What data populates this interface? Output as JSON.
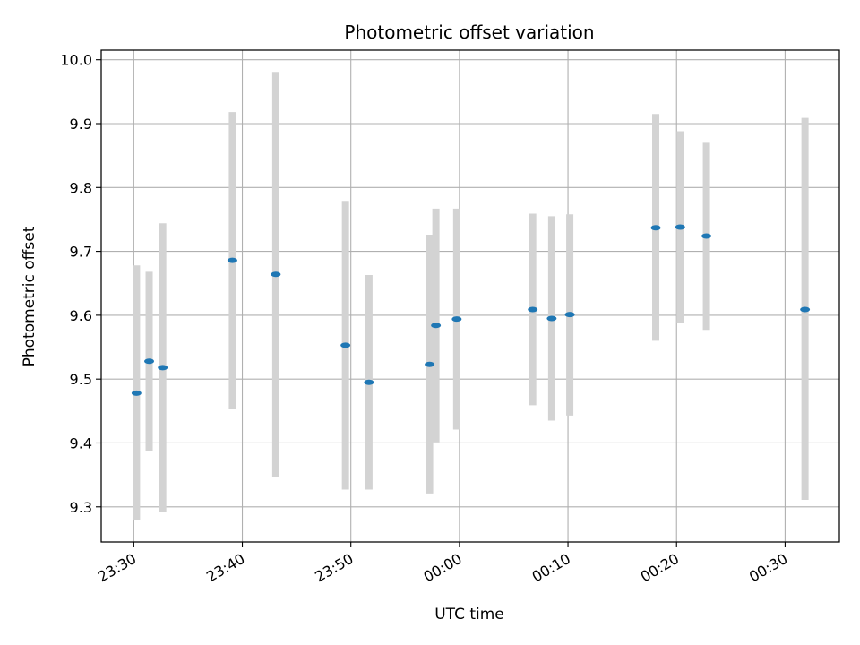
{
  "chart_data": {
    "type": "scatter",
    "title": "Photometric offset variation",
    "xlabel": "UTC time",
    "ylabel": "Photometric offset",
    "x_axis": {
      "kind": "time",
      "ticks": [
        "23:30",
        "23:40",
        "23:50",
        "00:00",
        "00:10",
        "00:20",
        "00:30"
      ],
      "range": [
        "23:27",
        "00:35"
      ]
    },
    "y_axis": {
      "ticks": [
        "9.3",
        "9.4",
        "9.5",
        "9.6",
        "9.7",
        "9.8",
        "9.9",
        "10.0"
      ],
      "range": [
        9.245,
        10.015
      ]
    },
    "grid": true,
    "marker_color": "#1f77b4",
    "errorbar_color": "#d3d3d3",
    "points": [
      {
        "time": "23:30:15",
        "y": 9.478,
        "ylow": 9.28,
        "yhigh": 9.678
      },
      {
        "time": "23:31:25",
        "y": 9.528,
        "ylow": 9.388,
        "yhigh": 9.668
      },
      {
        "time": "23:32:40",
        "y": 9.518,
        "ylow": 9.292,
        "yhigh": 9.744
      },
      {
        "time": "23:39:05",
        "y": 9.686,
        "ylow": 9.454,
        "yhigh": 9.918
      },
      {
        "time": "23:43:05",
        "y": 9.664,
        "ylow": 9.347,
        "yhigh": 9.981
      },
      {
        "time": "23:49:30",
        "y": 9.553,
        "ylow": 9.327,
        "yhigh": 9.779
      },
      {
        "time": "23:51:40",
        "y": 9.495,
        "ylow": 9.327,
        "yhigh": 9.663
      },
      {
        "time": "23:57:15",
        "y": 9.523,
        "ylow": 9.321,
        "yhigh": 9.726
      },
      {
        "time": "23:57:50",
        "y": 9.584,
        "ylow": 9.401,
        "yhigh": 9.767
      },
      {
        "time": "23:59:45",
        "y": 9.594,
        "ylow": 9.421,
        "yhigh": 9.767
      },
      {
        "time": "00:06:45",
        "y": 9.609,
        "ylow": 9.459,
        "yhigh": 9.759
      },
      {
        "time": "00:08:30",
        "y": 9.595,
        "ylow": 9.435,
        "yhigh": 9.755
      },
      {
        "time": "00:10:10",
        "y": 9.601,
        "ylow": 9.443,
        "yhigh": 9.758
      },
      {
        "time": "00:18:05",
        "y": 9.737,
        "ylow": 9.56,
        "yhigh": 9.915
      },
      {
        "time": "00:20:20",
        "y": 9.738,
        "ylow": 9.588,
        "yhigh": 9.888
      },
      {
        "time": "00:22:45",
        "y": 9.724,
        "ylow": 9.577,
        "yhigh": 9.87
      },
      {
        "time": "00:31:50",
        "y": 9.609,
        "ylow": 9.311,
        "yhigh": 9.909
      }
    ]
  }
}
